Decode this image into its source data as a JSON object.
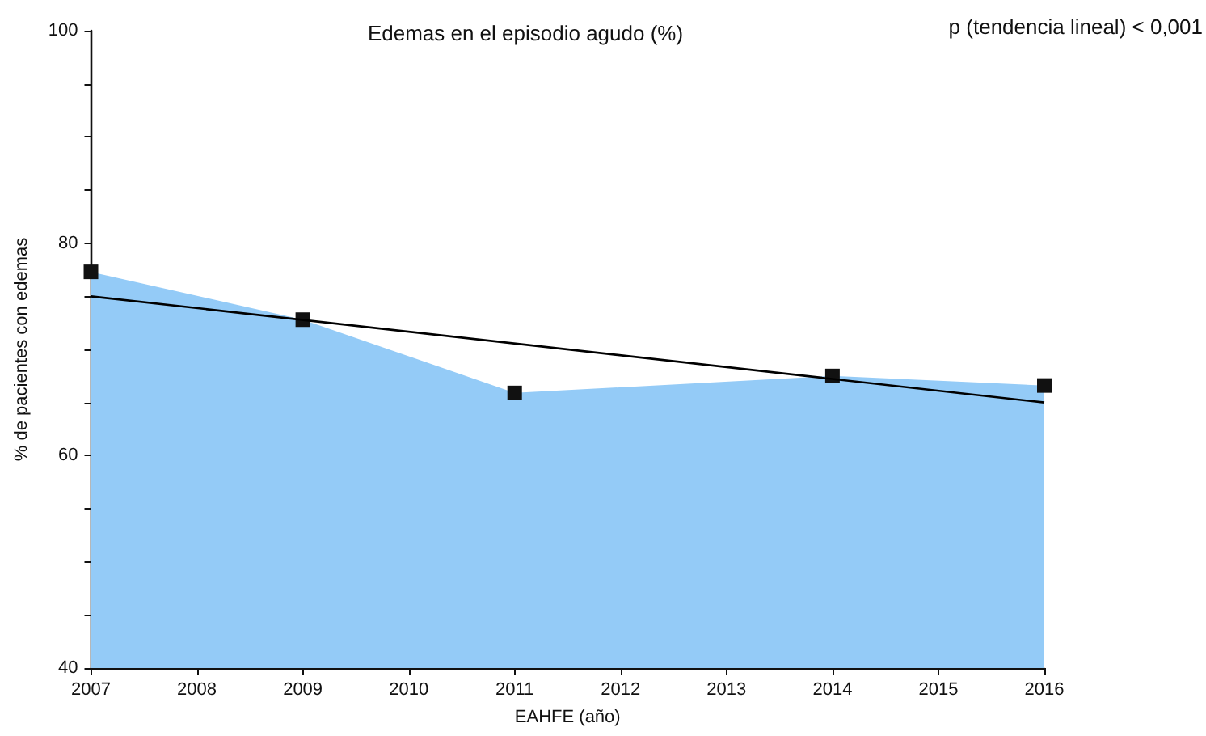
{
  "chart_data": {
    "type": "area",
    "title": "Edemas en el episodio agudo (%)",
    "xlabel": "EAHFE (año)",
    "ylabel": "% de pacientes con edemas",
    "annotations": [
      "p (tendencia lineal) < 0,001"
    ],
    "series": [
      {
        "x": [
          2007,
          2009,
          2011,
          2014,
          2016
        ],
        "values": [
          77.3,
          72.8,
          65.9,
          67.5,
          66.6
        ],
        "color": "#94cbf7",
        "marker": "square"
      },
      {
        "type": "line",
        "x": [
          2007,
          2016
        ],
        "values": [
          75.0,
          65.0
        ],
        "color": "#000000",
        "marker": "none"
      }
    ],
    "xlim": [
      2007,
      2016
    ],
    "xticks": [
      2007,
      2008,
      2009,
      2010,
      2011,
      2012,
      2013,
      2014,
      2015,
      2016
    ],
    "ylim": [
      40,
      100
    ],
    "yticks": [
      40,
      {
        "value": 45,
        "label": null
      },
      {
        "value": 50,
        "label": null
      },
      {
        "value": 55,
        "label": null
      },
      60,
      {
        "value": 65,
        "label": null
      },
      {
        "value": 70,
        "label": null
      },
      {
        "value": 75,
        "label": null
      },
      80,
      {
        "value": 85,
        "label": null
      },
      {
        "value": 90,
        "label": null
      },
      {
        "value": 95,
        "label": null
      },
      100
    ],
    "grid": false
  }
}
